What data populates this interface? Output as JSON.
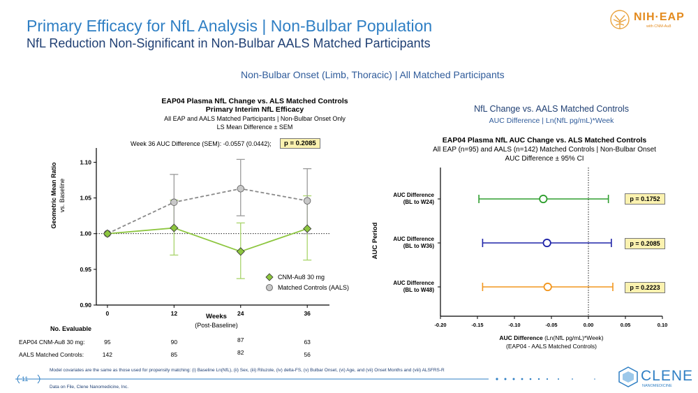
{
  "header": {
    "title": "Primary Efficacy for NfL Analysis | Non-Bulbar Population",
    "subtitle": "NfL Reduction Non-Significant in Non-Bulbar AALS Matched Participants",
    "section": "Non-Bulbar Onset (Limb, Thoracic) | All Matched Participants"
  },
  "logos": {
    "nih_eap": "NIH·EAP",
    "nih_eap_sub": "with CNM-Au8",
    "clene": "CLENE",
    "clene_sub": "NANOMEDICINE"
  },
  "right_header": {
    "line1": "NfL Change vs. AALS Matched Controls",
    "line2": "AUC Difference | Ln(NfL pg/mL)*Week"
  },
  "footer": {
    "page_number": "11",
    "footnote": "Model covariates are the same as those used for propensity matching: (i) Baseline Ln(NfL), (ii) Sex, (iii) Riluzole, (iv) delta-FS, (v) Bulbar Onset, (vi) Age, and (vii) Onset Months and (viii) ALSFRS-R",
    "data_note": "Data on File, Clene Nanomedicine, Inc."
  },
  "colors": {
    "title": "#2f7fc4",
    "cnm": "#8dc63f",
    "controls": "#8a8a8a",
    "green": "#2e9e2e",
    "blue": "#1f24a8",
    "orange": "#f2961e",
    "pbox": "#fbf2b0"
  },
  "chart_data": [
    {
      "type": "line",
      "title": "EAP04 Plasma NfL Change vs. ALS Matched Controls",
      "subtitle": "Primary Interim NfL Efficacy",
      "notes": [
        "All EAP and AALS Matched Participants | Non-Bulbar Onset Only",
        "LS Mean Difference ± SEM"
      ],
      "annotation": "Week 36 AUC Difference (SEM):  -0.0557 (0.0442);",
      "p_value": "p = 0.2085",
      "xlabel": "Weeks",
      "xlabel2": "(Post-Baseline)",
      "ylabel": "Geometric Mean Ratio",
      "ylabel2": "vs. Baseline",
      "x": [
        0,
        12,
        24,
        36
      ],
      "xlim": [
        -2,
        40
      ],
      "ylim": [
        0.9,
        1.12
      ],
      "yticks": [
        0.9,
        0.95,
        1.0,
        1.05,
        1.1
      ],
      "ytick_labels": [
        "0.90",
        "0.95",
        "1.00",
        "1.05",
        "1.10"
      ],
      "xtick_labels": [
        "0",
        "12",
        "24",
        "36"
      ],
      "reference_line": 1.0,
      "series": [
        {
          "name": "CNM-Au8 30 mg",
          "values": [
            1.0,
            1.008,
            0.975,
            1.007
          ],
          "err_low": [
            null,
            0.97,
            0.937,
            0.963
          ],
          "err_high": [
            null,
            1.047,
            1.015,
            1.053
          ],
          "marker": "diamond"
        },
        {
          "name": "Matched Controls (AALS)",
          "values": [
            1.0,
            1.044,
            1.063,
            1.046
          ],
          "err_low": [
            null,
            1.007,
            1.025,
            1.0
          ],
          "err_high": [
            null,
            1.083,
            1.104,
            1.091
          ],
          "marker": "circle"
        }
      ],
      "n_evaluable": {
        "heading": "No. Evaluable",
        "rows": [
          {
            "label": "EAP04 CNM-Au8 30 mg:",
            "values": [
              "95",
              "90",
              "87",
              "63"
            ]
          },
          {
            "label": "AALS Matched Controls:",
            "values": [
              "142",
              "85",
              "82",
              "56"
            ]
          }
        ]
      }
    },
    {
      "type": "scatter",
      "title": "EAP04 Plasma NfL AUC Change vs. ALS Matched Controls",
      "notes": [
        "All EAP (n=95) and AALS (n=142) Matched Controls | Non-Bulbar Onset",
        "AUC Difference ± 95% CI"
      ],
      "xlabel": "AUC Difference (Ln(NfL pg/mL)*Week)",
      "xlabel_bold": "AUC Difference",
      "xlabel_rest": " (Ln(NfL pg/mL)*Week)",
      "xlabel2": "(EAP04 - AALS Matched Controls)",
      "ylabel": "AUC Period",
      "xlim": [
        -0.2,
        0.1
      ],
      "xticks": [
        -0.2,
        -0.15,
        -0.1,
        -0.05,
        0.0,
        0.05,
        0.1
      ],
      "xtick_labels": [
        "-0.20",
        "-0.15",
        "-0.10",
        "-0.05",
        "0.00",
        "0.05",
        "0.10"
      ],
      "reference_line": 0.0,
      "rows": [
        {
          "label1": "AUC Difference",
          "label2": "(BL to W24)",
          "estimate": -0.061,
          "ci_low": -0.148,
          "ci_high": 0.027,
          "p": "p = 0.1752",
          "color": "#2e9e2e"
        },
        {
          "label1": "AUC Difference",
          "label2": "(BL to W36)",
          "estimate": -0.056,
          "ci_low": -0.143,
          "ci_high": 0.031,
          "p": "p = 0.2085",
          "color": "#1f24a8"
        },
        {
          "label1": "AUC Difference",
          "label2": "(BL to W48)",
          "estimate": -0.055,
          "ci_low": -0.143,
          "ci_high": 0.033,
          "p": "p = 0.2223",
          "color": "#f2961e"
        }
      ]
    }
  ]
}
